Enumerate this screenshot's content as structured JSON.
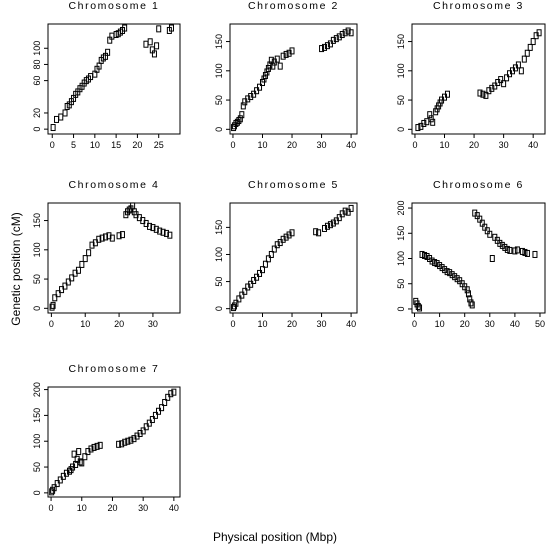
{
  "figure": {
    "ylabel": "Genetic position (cM)",
    "xlabel": "Physical position (Mbp)"
  },
  "chart_data": [
    {
      "type": "scatter",
      "title": "Chromosome 1",
      "xlim": [
        -1,
        30
      ],
      "ylim": [
        -6,
        130
      ],
      "xticks": [
        0,
        5,
        10,
        15,
        20,
        25
      ],
      "yticks": [
        0,
        20,
        60,
        80,
        100
      ],
      "x": [
        0.2,
        1.0,
        2.0,
        3.0,
        3.5,
        4.0,
        4.5,
        5.0,
        5.5,
        6.0,
        6.5,
        7.0,
        7.5,
        8.0,
        8.5,
        9.0,
        10.0,
        10.5,
        11.0,
        11.5,
        12.0,
        12.5,
        13.0,
        13.5,
        14.0,
        15.0,
        15.5,
        16.0,
        16.5,
        17.0,
        22.0,
        23.0,
        23.5,
        24.0,
        24.5,
        25.0,
        27.5,
        28.0
      ],
      "y": [
        2,
        12,
        15,
        20,
        28,
        30,
        34,
        38,
        43,
        46,
        50,
        53,
        57,
        60,
        62,
        65,
        68,
        74,
        78,
        85,
        88,
        90,
        95,
        110,
        115,
        117,
        118,
        120,
        122,
        125,
        105,
        108,
        98,
        93,
        103,
        124,
        122,
        125
      ]
    },
    {
      "type": "scatter",
      "title": "Chromosome 2",
      "xlim": [
        -1,
        42
      ],
      "ylim": [
        -8,
        180
      ],
      "xticks": [
        0,
        10,
        20,
        30,
        40
      ],
      "yticks": [
        0,
        50,
        100,
        150
      ],
      "x": [
        0.2,
        0.5,
        1.0,
        1.5,
        2.0,
        2.5,
        3.0,
        3.5,
        4.0,
        5.0,
        6.0,
        7.0,
        8.0,
        9.0,
        10.0,
        10.5,
        11.0,
        11.5,
        12.0,
        12.5,
        13.0,
        13.5,
        14.0,
        15.0,
        16.0,
        17.0,
        18.0,
        19.0,
        20.0,
        30.0,
        31.0,
        32.0,
        33.0,
        34.0,
        35.0,
        36.0,
        37.0,
        38.0,
        39.0,
        40.0
      ],
      "y": [
        3,
        6,
        10,
        12,
        15,
        18,
        25,
        40,
        47,
        52,
        56,
        60,
        66,
        72,
        80,
        86,
        92,
        98,
        104,
        110,
        118,
        108,
        115,
        120,
        108,
        125,
        128,
        130,
        134,
        138,
        140,
        143,
        146,
        152,
        155,
        158,
        162,
        165,
        168,
        165
      ]
    },
    {
      "type": "scatter",
      "title": "Chromosome 3",
      "xlim": [
        -1,
        44
      ],
      "ylim": [
        -8,
        180
      ],
      "xticks": [
        0,
        10,
        20,
        30,
        40
      ],
      "yticks": [
        0,
        50,
        100,
        150
      ],
      "x": [
        1.0,
        2.0,
        3.0,
        4.0,
        5.0,
        5.5,
        6.0,
        7.0,
        7.5,
        8.0,
        8.5,
        9.0,
        10.0,
        11.0,
        22.0,
        23.0,
        24.0,
        25.0,
        26.0,
        27.0,
        28.0,
        29.0,
        30.0,
        31.0,
        32.0,
        33.0,
        34.0,
        35.0,
        36.0,
        37.0,
        38.0,
        39.0,
        40.0,
        41.0,
        42.0
      ],
      "y": [
        3,
        5,
        10,
        13,
        25,
        18,
        12,
        30,
        35,
        40,
        45,
        50,
        55,
        60,
        62,
        60,
        58,
        66,
        70,
        74,
        80,
        85,
        78,
        88,
        95,
        100,
        105,
        110,
        100,
        120,
        130,
        140,
        150,
        160,
        165
      ]
    },
    {
      "type": "scatter",
      "title": "Chromosome 4",
      "xlim": [
        -1,
        38
      ],
      "ylim": [
        -8,
        180
      ],
      "xticks": [
        0,
        10,
        20,
        30
      ],
      "yticks": [
        0,
        50,
        100,
        150
      ],
      "x": [
        0.2,
        0.5,
        1.0,
        2.0,
        3.0,
        4.0,
        5.0,
        6.0,
        7.0,
        8.0,
        9.0,
        10.0,
        11.0,
        12.0,
        13.0,
        14.0,
        15.0,
        16.0,
        17.0,
        18.0,
        20.0,
        21.0,
        22.0,
        22.5,
        23.0,
        23.5,
        24.0,
        24.5,
        25.0,
        26.0,
        27.0,
        28.0,
        29.0,
        30.0,
        31.0,
        32.0,
        33.0,
        34.0,
        35.0
      ],
      "y": [
        2,
        5,
        18,
        25,
        32,
        38,
        45,
        52,
        60,
        65,
        75,
        85,
        95,
        108,
        112,
        118,
        120,
        122,
        124,
        120,
        124,
        126,
        160,
        165,
        168,
        170,
        175,
        165,
        160,
        155,
        150,
        145,
        140,
        138,
        135,
        132,
        130,
        128,
        125
      ]
    },
    {
      "type": "scatter",
      "title": "Chromosome 5",
      "xlim": [
        -1,
        42
      ],
      "ylim": [
        -8,
        195
      ],
      "xticks": [
        0,
        10,
        20,
        30,
        40
      ],
      "yticks": [
        0,
        50,
        100,
        150
      ],
      "x": [
        0.2,
        0.5,
        1.0,
        2.0,
        3.0,
        4.0,
        5.0,
        6.0,
        7.0,
        8.0,
        9.0,
        10.0,
        11.0,
        12.0,
        13.0,
        14.0,
        15.0,
        16.0,
        17.0,
        18.0,
        19.0,
        20.0,
        28.0,
        29.0,
        31.0,
        32.0,
        33.0,
        34.0,
        35.0,
        36.0,
        37.0,
        38.0,
        39.0,
        40.0
      ],
      "y": [
        2,
        5,
        10,
        18,
        25,
        32,
        40,
        45,
        52,
        58,
        65,
        72,
        82,
        92,
        100,
        110,
        118,
        122,
        128,
        132,
        136,
        140,
        142,
        140,
        148,
        152,
        155,
        158,
        162,
        168,
        175,
        180,
        178,
        185
      ]
    },
    {
      "type": "scatter",
      "title": "Chromosome 6",
      "xlim": [
        -1,
        52
      ],
      "ylim": [
        -8,
        210
      ],
      "xticks": [
        0,
        10,
        20,
        30,
        40,
        50
      ],
      "yticks": [
        0,
        50,
        100,
        150,
        200
      ],
      "x": [
        0.5,
        1.0,
        1.5,
        2.0,
        3.0,
        4.0,
        5.0,
        6.0,
        7.0,
        8.0,
        9.0,
        10.0,
        11.0,
        12.0,
        13.0,
        14.0,
        15.0,
        16.0,
        17.0,
        18.0,
        19.0,
        20.0,
        21.0,
        21.5,
        22.0,
        22.5,
        23.0,
        24.0,
        25.0,
        26.0,
        27.0,
        28.0,
        29.0,
        30.0,
        31.0,
        32.0,
        33.0,
        34.0,
        35.0,
        36.0,
        37.0,
        38.0,
        40.0,
        41.0,
        43.0,
        44.0,
        45.0,
        48.0
      ],
      "y": [
        15,
        10,
        5,
        2,
        108,
        106,
        104,
        100,
        95,
        92,
        90,
        86,
        82,
        78,
        74,
        72,
        68,
        64,
        60,
        56,
        50,
        44,
        38,
        30,
        20,
        12,
        8,
        190,
        185,
        178,
        170,
        162,
        155,
        148,
        100,
        142,
        136,
        130,
        126,
        122,
        118,
        116,
        115,
        117,
        114,
        112,
        110,
        108
      ]
    },
    {
      "type": "scatter",
      "title": "Chromosome 7",
      "xlim": [
        -1,
        42
      ],
      "ylim": [
        -8,
        205
      ],
      "xticks": [
        0,
        10,
        20,
        30,
        40
      ],
      "yticks": [
        0,
        50,
        100,
        150,
        200
      ],
      "x": [
        0.2,
        0.5,
        1.0,
        2.0,
        3.0,
        4.0,
        5.0,
        6.0,
        6.5,
        7.0,
        7.5,
        8.0,
        8.5,
        9.0,
        9.5,
        10.0,
        11.0,
        12.0,
        13.0,
        14.0,
        15.0,
        16.0,
        22.0,
        23.0,
        24.0,
        25.0,
        26.0,
        27.0,
        28.0,
        29.0,
        30.0,
        31.0,
        32.0,
        33.0,
        34.0,
        35.0,
        36.0,
        37.0,
        38.0,
        39.0,
        40.0
      ],
      "y": [
        2,
        5,
        10,
        18,
        25,
        32,
        38,
        42,
        45,
        50,
        75,
        55,
        65,
        80,
        60,
        58,
        70,
        80,
        85,
        88,
        90,
        92,
        94,
        95,
        98,
        100,
        102,
        105,
        110,
        115,
        120,
        128,
        135,
        142,
        150,
        158,
        165,
        175,
        185,
        192,
        195
      ]
    }
  ]
}
